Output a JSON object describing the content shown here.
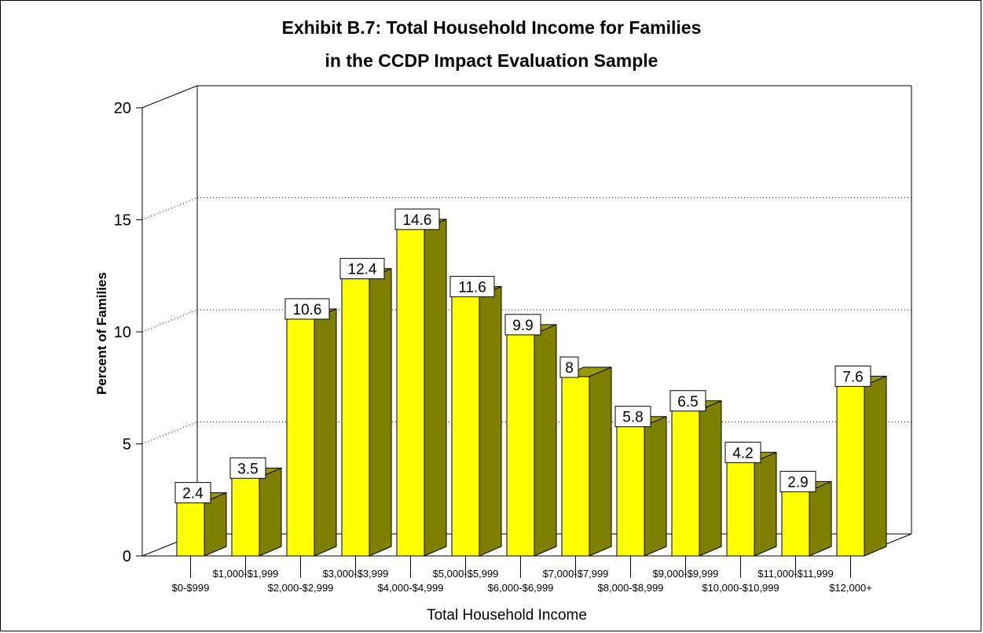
{
  "title_line1": "Exhibit B.7:  Total Household Income for Families",
  "title_line2": "in the CCDP Impact Evaluation Sample",
  "chart_data": {
    "type": "bar",
    "xlabel": "Total Household Income",
    "ylabel": "Percent of Families",
    "ylim": [
      0,
      20
    ],
    "yticks": [
      0,
      5,
      10,
      15,
      20
    ],
    "grid": true,
    "categories": [
      "$0-$999",
      "$1,000-$1,999",
      "$2,000-$2,999",
      "$3,000-$3,999",
      "$4,000-$4,999",
      "$5,000-$5,999",
      "$6,000-$6,999",
      "$7,000-$7,999",
      "$8,000-$8,999",
      "$9,000-$9,999",
      "$10,000-$10,999",
      "$11,000-$11,999",
      "$12,000+"
    ],
    "values": [
      2.4,
      3.5,
      10.6,
      12.4,
      14.6,
      11.6,
      9.9,
      8,
      5.8,
      6.5,
      4.2,
      2.9,
      7.6
    ],
    "value_labels": [
      "2.4",
      "3.5",
      "10.6",
      "12.4",
      "14.6",
      "11.6",
      "9.9",
      "8",
      "5.8",
      "6.5",
      "4.2",
      "2.9",
      "7.6"
    ],
    "colors": {
      "bar_front": "#ffff00",
      "bar_side": "#808000",
      "bar_top": "#999900"
    }
  }
}
